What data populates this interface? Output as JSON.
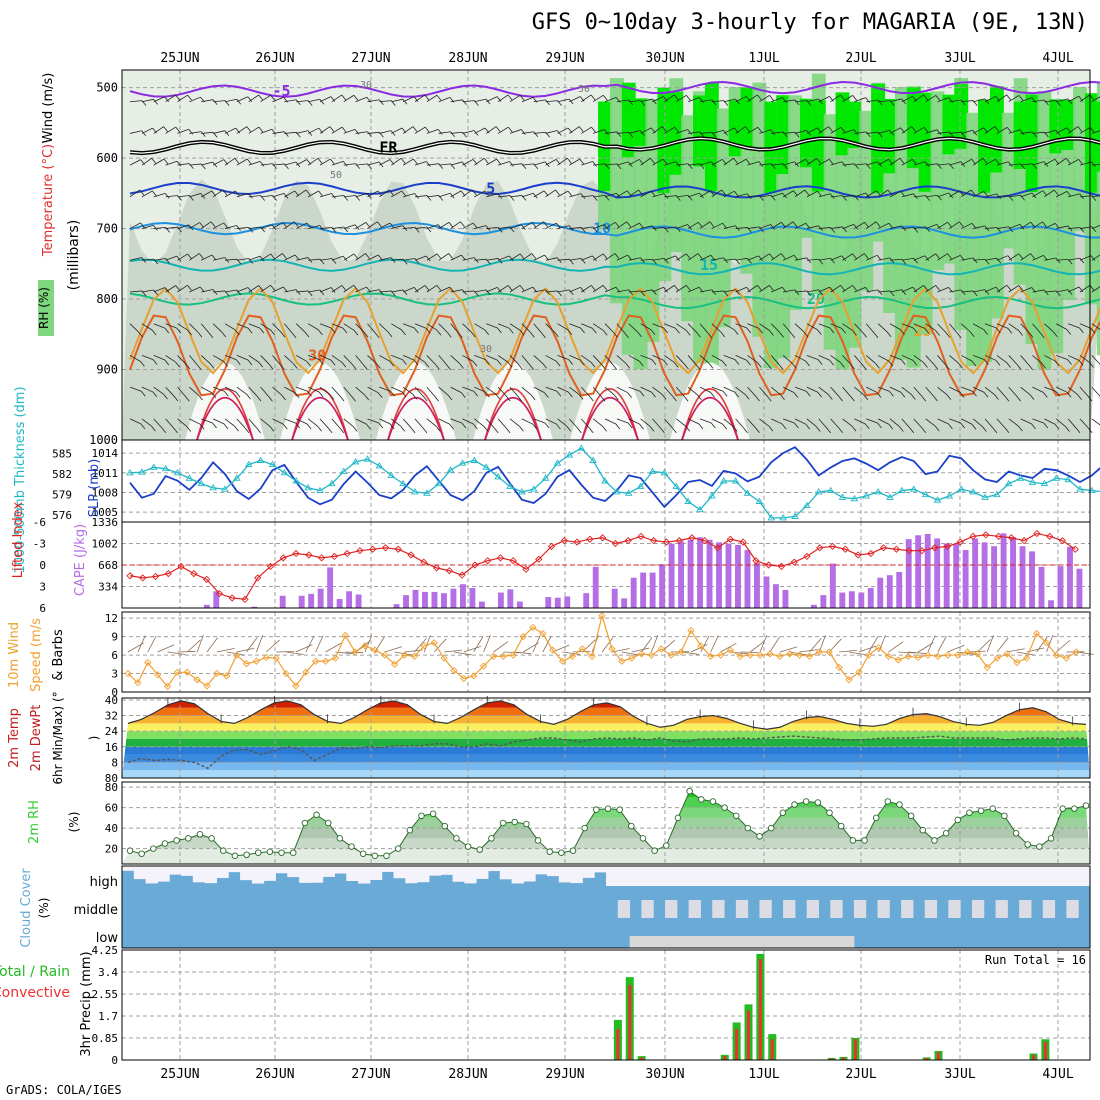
{
  "title": "GFS 0~10day 3-hourly for MAGARIA (9E, 13N)",
  "footer": "GrADS: COLA/IGES",
  "dates": [
    "25JUN",
    "26JUN",
    "27JUN",
    "28JUN",
    "29JUN",
    "30JUN",
    "1JUL",
    "2JUL",
    "3JUL",
    "4JUL"
  ],
  "colors": {
    "grid": "#a0a0a0",
    "rh_light": "#e6eee6",
    "rh_mid": "#c4d2c4",
    "rh_green": "#7ed67e",
    "rh_bright": "#00e800",
    "slp": "#1a3fc8",
    "thickness": "#20b8c8",
    "lifted": "#e02020",
    "cape": "#b46ee6",
    "wind10": "#f0a030",
    "rh2m": "#33cc33",
    "cloud": "#6aaad6",
    "precip_total": "#22bb22",
    "precip_conv": "#ee3030"
  },
  "panels": {
    "upper": {
      "ylabel_left": "RH (%)",
      "ylabel_temp": "Temperature (°C)",
      "ylabel_wind": "Wind (m/s)",
      "ylabel_units": "(millibars)",
      "levels": [
        500,
        600,
        700,
        800,
        900,
        1000
      ],
      "freezing_label": "FR",
      "isotherms": [
        {
          "label": "-5",
          "color": "#8a2be2",
          "level": 505
        },
        {
          "label": "FR",
          "color": "#000000",
          "level": 585
        },
        {
          "label": "5",
          "color": "#1a3fc8",
          "level": 643
        },
        {
          "label": "10",
          "color": "#1e90e0",
          "level": 700
        },
        {
          "label": "15",
          "color": "#14b4b4",
          "level": 752
        },
        {
          "label": "20",
          "color": "#18c080",
          "level": 800
        },
        {
          "label": "25",
          "color": "#e8a030",
          "level": 845
        },
        {
          "label": "30",
          "color": "#e06020",
          "level": 880
        }
      ],
      "rh_labels": [
        "30",
        "50",
        "50",
        "30"
      ]
    },
    "slp": {
      "ylabel_thick": "1000-500mb Thickness (dm)",
      "ylabel_slp": "SLP (mb)",
      "thick_ticks": [
        576,
        579,
        582,
        585
      ],
      "slp_ticks": [
        1005,
        1008,
        1011,
        1014
      ],
      "slp_values": [
        1009.5,
        1007.2,
        1007.8,
        1010.5,
        1009.8,
        1008.4,
        1010.2,
        1012.6,
        1010.8,
        1008.2,
        1007.0,
        1008.6,
        1011.4,
        1012.2,
        1009.6,
        1007.2,
        1006.2,
        1006.9,
        1009.3,
        1011.2,
        1009.5,
        1007.6,
        1007.1,
        1008.4,
        1010.6,
        1012.0,
        1009.8,
        1007.6,
        1006.8,
        1008.2,
        1011.0,
        1011.9,
        1009.4,
        1006.9,
        1006.4,
        1007.8,
        1010.4,
        1011.4,
        1009.2,
        1007.2,
        1006.7,
        1008.3,
        1010.6,
        1010.2,
        1008.0,
        1005.8,
        1007.6,
        1009.6,
        1009.9,
        1009.0,
        1011.3,
        1010.9,
        1009.7,
        1010.4,
        1012.6,
        1014.0,
        1014.9,
        1013.0,
        1010.6,
        1011.8,
        1012.8,
        1013.2,
        1012.4,
        1011.4,
        1012.6,
        1013.4,
        1012.8,
        1010.8,
        1011.2,
        1013.6,
        1013.2,
        1011.4,
        1010.0,
        1009.6,
        1011.2,
        1010.6,
        1010.2,
        1011.6,
        1011.4,
        1010.6,
        1009.6,
        1010.6,
        1012.2
      ],
      "thick_values": [
        582.2,
        582.3,
        583.0,
        582.8,
        582.2,
        581.4,
        580.6,
        580.0,
        579.8,
        581.4,
        583.4,
        584.0,
        583.4,
        582.2,
        581.0,
        580.0,
        579.6,
        580.6,
        582.4,
        583.8,
        584.2,
        583.2,
        581.8,
        580.6,
        579.4,
        579.2,
        580.6,
        582.6,
        583.6,
        584.0,
        583.0,
        581.6,
        580.2,
        579.4,
        579.8,
        581.4,
        583.6,
        584.8,
        585.8,
        584.0,
        581.0,
        579.4,
        579.2,
        580.2,
        582.4,
        582.2,
        580.2,
        578.0,
        576.8,
        578.8,
        581.0,
        581.0,
        579.2,
        578.0,
        575.6,
        575.6,
        575.8,
        577.4,
        579.4,
        579.6,
        578.6,
        578.4,
        578.8,
        579.4,
        578.6,
        579.6,
        579.8,
        579.0,
        578.2,
        578.8,
        579.8,
        579.4,
        578.6,
        579.0,
        580.6,
        581.4,
        580.8,
        580.6,
        581.4,
        581.2,
        579.8,
        579.6,
        579.4
      ]
    },
    "cape": {
      "ylabel_li": "Lifted Index",
      "ylabel_cape": "CAPE (J/kg)",
      "li_ticks": [
        6,
        3,
        0,
        -3,
        -6
      ],
      "cape_ticks": [
        334,
        668,
        1002,
        1336
      ],
      "cape_values": [
        0,
        0,
        0,
        0,
        0,
        0,
        0,
        0,
        50,
        260,
        0,
        0,
        0,
        20,
        0,
        0,
        190,
        0,
        190,
        220,
        300,
        630,
        140,
        260,
        210,
        0,
        0,
        0,
        60,
        200,
        280,
        250,
        250,
        230,
        300,
        370,
        310,
        100,
        0,
        240,
        290,
        100,
        0,
        0,
        170,
        160,
        180,
        0,
        230,
        640,
        0,
        300,
        150,
        470,
        550,
        550,
        680,
        1000,
        1030,
        1060,
        1100,
        1060,
        1020,
        1000,
        980,
        900,
        700,
        490,
        370,
        280,
        0,
        0,
        50,
        200,
        690,
        240,
        260,
        240,
        310,
        470,
        510,
        560,
        1070,
        1130,
        1150,
        1080,
        1000,
        1000,
        900,
        1080,
        1020,
        960,
        1160,
        1100,
        960,
        880,
        640,
        120,
        650,
        950,
        610
      ],
      "li_values": [
        1.5,
        1.8,
        1.6,
        1.2,
        0.2,
        1.2,
        2.0,
        4.0,
        4.6,
        4.8,
        1.8,
        0.2,
        -1.0,
        -1.6,
        -1.4,
        -1.0,
        -1.2,
        -1.6,
        -2.0,
        -2.2,
        -2.4,
        -2.2,
        -1.4,
        -0.4,
        0.4,
        0.8,
        1.4,
        0.0,
        -0.6,
        -1.0,
        -0.6,
        0.6,
        -0.8,
        -2.6,
        -3.4,
        -3.2,
        -3.6,
        -3.8,
        -3.0,
        -3.4,
        -4.0,
        -3.4,
        -3.2,
        -3.4,
        -3.8,
        -3.4,
        -2.4,
        -3.6,
        -3.2,
        -0.6,
        0.0,
        0.2,
        -0.4,
        -1.2,
        -2.4,
        -2.6,
        -2.2,
        -1.4,
        -1.6,
        -2.4,
        -2.2,
        -2.0,
        -2.0,
        -2.4,
        -2.6,
        -3.2,
        -4.0,
        -4.2,
        -4.0,
        -3.8,
        -3.4,
        -4.4,
        -4.0,
        -3.4,
        -2.2
      ]
    },
    "wind10": {
      "ylabel": "10m Wind Speed (m/s) & Barbs",
      "ticks": [
        0,
        3,
        6,
        9,
        12
      ],
      "values": [
        3.0,
        1.5,
        4.8,
        2.8,
        0.9,
        3.2,
        3.2,
        2.0,
        1.0,
        3.0,
        2.6,
        6.0,
        4.6,
        5.0,
        5.6,
        5.5,
        3.0,
        1.0,
        3.2,
        5.0,
        5.0,
        5.5,
        9.2,
        6.5,
        7.5,
        6.8,
        6.0,
        4.5,
        6.0,
        5.8,
        7.5,
        8.0,
        5.5,
        3.5,
        2.2,
        2.6,
        4.2,
        5.8,
        5.8,
        6.0,
        9.0,
        10.5,
        9.5,
        6.8,
        5.0,
        5.8,
        7.0,
        5.8,
        12.4,
        7.0,
        5.0,
        5.5,
        6.2,
        6.0,
        7.0,
        6.0,
        6.5,
        10.0,
        7.5,
        5.8,
        6.0,
        6.8,
        5.8,
        6.0,
        6.0,
        6.2,
        5.8,
        6.2,
        6.0,
        5.8,
        6.5,
        6.5,
        4.0,
        2.0,
        3.2,
        6.0,
        7.2,
        5.8,
        5.2,
        5.8,
        5.6,
        6.0,
        5.8,
        6.0,
        6.0,
        6.5,
        6.2,
        4.0,
        5.5,
        6.2,
        4.8,
        5.5,
        9.5,
        8.0,
        6.0,
        5.5,
        6.5
      ]
    },
    "temp2m": {
      "ylabel": "2m Temp 2m DewPt (6hr Min/Max) (°C)",
      "ticks": [
        0,
        8,
        16,
        24,
        32,
        40
      ],
      "temp_values": [
        28.0,
        30.0,
        33.5,
        37.5,
        39.5,
        38.0,
        33.0,
        29.0,
        28.0,
        31.0,
        35.0,
        38.5,
        39.5,
        37.5,
        32.5,
        29.0,
        28.0,
        31.0,
        35.0,
        38.5,
        39.5,
        37.5,
        32.5,
        29.0,
        28.0,
        31.0,
        35.0,
        38.5,
        39.5,
        37.5,
        32.5,
        29.0,
        27.5,
        30.0,
        34.0,
        37.5,
        38.5,
        36.5,
        31.5,
        28.0,
        26.0,
        27.0,
        30.0,
        31.5,
        32.0,
        30.5,
        28.0,
        26.0,
        25.0,
        26.0,
        29.0,
        31.0,
        31.5,
        30.0,
        28.0,
        27.0,
        26.5,
        27.5,
        30.5,
        32.5,
        33.0,
        31.5,
        29.0,
        27.5,
        27.0,
        28.5,
        32.0,
        35.0,
        36.0,
        34.0,
        30.0,
        28.0,
        27.5
      ],
      "dew_values": [
        8.0,
        10.0,
        9.0,
        9.5,
        9.0,
        8.0,
        5.0,
        11.0,
        14.5,
        14.5,
        12.0,
        14.0,
        16.0,
        14.5,
        9.0,
        12.0,
        15.5,
        15.0,
        16.0,
        15.5,
        16.5,
        16.5,
        16.5,
        17.5,
        17.5,
        16.0,
        16.0,
        17.5,
        16.5,
        18.5,
        19.5,
        20.5,
        20.5,
        19.5,
        18.5,
        20.0,
        20.5,
        20.0,
        20.5,
        19.5,
        20.5,
        19.0,
        18.5,
        20.0,
        20.0,
        20.0,
        20.5,
        20.0,
        20.5,
        21.0,
        21.5,
        21.0,
        20.5,
        20.0,
        19.5,
        19.5,
        20.0,
        20.5,
        20.5,
        20.5,
        21.0,
        21.5,
        20.5,
        20.5,
        20.5,
        20.5,
        19.5,
        20.0,
        20.5,
        20.5,
        20.0,
        20.5,
        20.0
      ]
    },
    "rh2m": {
      "ylabel": "2m RH (%)",
      "ticks": [
        20,
        40,
        60,
        80
      ],
      "values": [
        18,
        15,
        20,
        25,
        28,
        30,
        34,
        30,
        18,
        13,
        14,
        16,
        17,
        16,
        16,
        45,
        53,
        45,
        30,
        22,
        15,
        13,
        13,
        20,
        38,
        52,
        54,
        42,
        30,
        22,
        19,
        30,
        45,
        46,
        44,
        28,
        17,
        16,
        18,
        40,
        58,
        59,
        58,
        42,
        30,
        18,
        23,
        50,
        76,
        68,
        66,
        60,
        52,
        40,
        32,
        40,
        55,
        63,
        66,
        65,
        55,
        42,
        28,
        28,
        50,
        66,
        63,
        52,
        38,
        28,
        35,
        48,
        55,
        57,
        59,
        52,
        35,
        24,
        22,
        30,
        59,
        59,
        62
      ]
    },
    "cloud": {
      "ylabel": "Cloud Cover (%)",
      "layer_labels": [
        "high",
        "middle",
        "low"
      ]
    },
    "precip": {
      "ylabel": "3hr Precip (mm)",
      "legend_total": "Total / Rain",
      "legend_conv": "Convective",
      "run_total": "Run Total = 16",
      "ticks": [
        0,
        0.85,
        1.7,
        2.55,
        3.4,
        4.25
      ],
      "bars": [
        {
          "i": 41,
          "total": 1.55,
          "conv": 1.2
        },
        {
          "i": 42,
          "total": 3.2,
          "conv": 2.9
        },
        {
          "i": 43,
          "total": 0.15,
          "conv": 0.1
        },
        {
          "i": 50,
          "total": 0.2,
          "conv": 0.15
        },
        {
          "i": 51,
          "total": 1.45,
          "conv": 1.2
        },
        {
          "i": 52,
          "total": 2.15,
          "conv": 1.9
        },
        {
          "i": 53,
          "total": 4.1,
          "conv": 3.9
        },
        {
          "i": 54,
          "total": 1.0,
          "conv": 0.8
        },
        {
          "i": 59,
          "total": 0.08,
          "conv": 0.06
        },
        {
          "i": 60,
          "total": 0.12,
          "conv": 0.1
        },
        {
          "i": 61,
          "total": 0.85,
          "conv": 0.8
        },
        {
          "i": 67,
          "total": 0.1,
          "conv": 0.08
        },
        {
          "i": 68,
          "total": 0.35,
          "conv": 0.3
        },
        {
          "i": 76,
          "total": 0.25,
          "conv": 0.2
        },
        {
          "i": 77,
          "total": 0.8,
          "conv": 0.7
        }
      ]
    }
  }
}
